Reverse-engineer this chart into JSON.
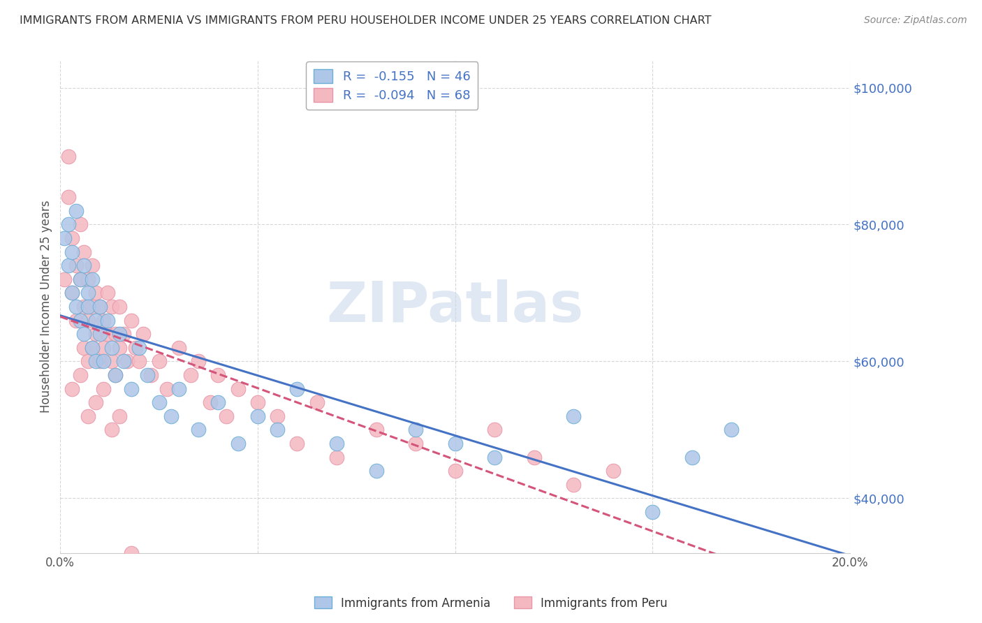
{
  "title": "IMMIGRANTS FROM ARMENIA VS IMMIGRANTS FROM PERU HOUSEHOLDER INCOME UNDER 25 YEARS CORRELATION CHART",
  "source": "Source: ZipAtlas.com",
  "ylabel": "Householder Income Under 25 years",
  "xlim": [
    0.0,
    0.2
  ],
  "ylim": [
    32000,
    104000
  ],
  "xticks": [
    0.0,
    0.05,
    0.1,
    0.15,
    0.2
  ],
  "xticklabels": [
    "0.0%",
    "",
    "",
    "",
    "20.0%"
  ],
  "yticks": [
    40000,
    60000,
    80000,
    100000
  ],
  "yticklabels": [
    "$40,000",
    "$60,000",
    "$80,000",
    "$100,000"
  ],
  "armenia_color": "#aec6e8",
  "peru_color": "#f4b8c1",
  "armenia_edge": "#6baed6",
  "peru_edge": "#e896a8",
  "armenia_line_color": "#4472c4",
  "peru_line_color": "#d4547a",
  "legend_label_armenia": "R =  -0.155   N = 46",
  "legend_label_peru": "R =  -0.094   N = 68",
  "watermark": "ZIPatlas",
  "armenia_x": [
    0.001,
    0.002,
    0.002,
    0.003,
    0.003,
    0.004,
    0.004,
    0.005,
    0.005,
    0.006,
    0.006,
    0.007,
    0.007,
    0.008,
    0.008,
    0.009,
    0.009,
    0.01,
    0.01,
    0.011,
    0.012,
    0.013,
    0.014,
    0.015,
    0.016,
    0.018,
    0.02,
    0.022,
    0.025,
    0.028,
    0.03,
    0.035,
    0.04,
    0.045,
    0.05,
    0.055,
    0.06,
    0.07,
    0.08,
    0.09,
    0.1,
    0.11,
    0.13,
    0.15,
    0.16,
    0.17
  ],
  "armenia_y": [
    78000,
    80000,
    74000,
    76000,
    70000,
    82000,
    68000,
    72000,
    66000,
    74000,
    64000,
    70000,
    68000,
    72000,
    62000,
    66000,
    60000,
    68000,
    64000,
    60000,
    66000,
    62000,
    58000,
    64000,
    60000,
    56000,
    62000,
    58000,
    54000,
    52000,
    56000,
    50000,
    54000,
    48000,
    52000,
    50000,
    56000,
    48000,
    44000,
    50000,
    48000,
    46000,
    52000,
    38000,
    46000,
    50000
  ],
  "peru_x": [
    0.001,
    0.002,
    0.002,
    0.003,
    0.003,
    0.004,
    0.004,
    0.005,
    0.005,
    0.006,
    0.006,
    0.006,
    0.007,
    0.007,
    0.007,
    0.008,
    0.008,
    0.008,
    0.009,
    0.009,
    0.01,
    0.01,
    0.011,
    0.011,
    0.012,
    0.012,
    0.013,
    0.013,
    0.014,
    0.014,
    0.015,
    0.015,
    0.016,
    0.017,
    0.018,
    0.019,
    0.02,
    0.021,
    0.023,
    0.025,
    0.027,
    0.03,
    0.033,
    0.035,
    0.038,
    0.04,
    0.042,
    0.045,
    0.05,
    0.055,
    0.06,
    0.065,
    0.07,
    0.08,
    0.09,
    0.1,
    0.11,
    0.12,
    0.13,
    0.14,
    0.003,
    0.005,
    0.007,
    0.009,
    0.011,
    0.013,
    0.015,
    0.018
  ],
  "peru_y": [
    72000,
    90000,
    84000,
    78000,
    70000,
    74000,
    66000,
    80000,
    72000,
    76000,
    68000,
    62000,
    72000,
    66000,
    60000,
    74000,
    68000,
    62000,
    70000,
    64000,
    68000,
    60000,
    66000,
    62000,
    70000,
    64000,
    68000,
    60000,
    64000,
    58000,
    68000,
    62000,
    64000,
    60000,
    66000,
    62000,
    60000,
    64000,
    58000,
    60000,
    56000,
    62000,
    58000,
    60000,
    54000,
    58000,
    52000,
    56000,
    54000,
    52000,
    48000,
    54000,
    46000,
    50000,
    48000,
    44000,
    50000,
    46000,
    42000,
    44000,
    56000,
    58000,
    52000,
    54000,
    56000,
    50000,
    52000,
    32000
  ]
}
